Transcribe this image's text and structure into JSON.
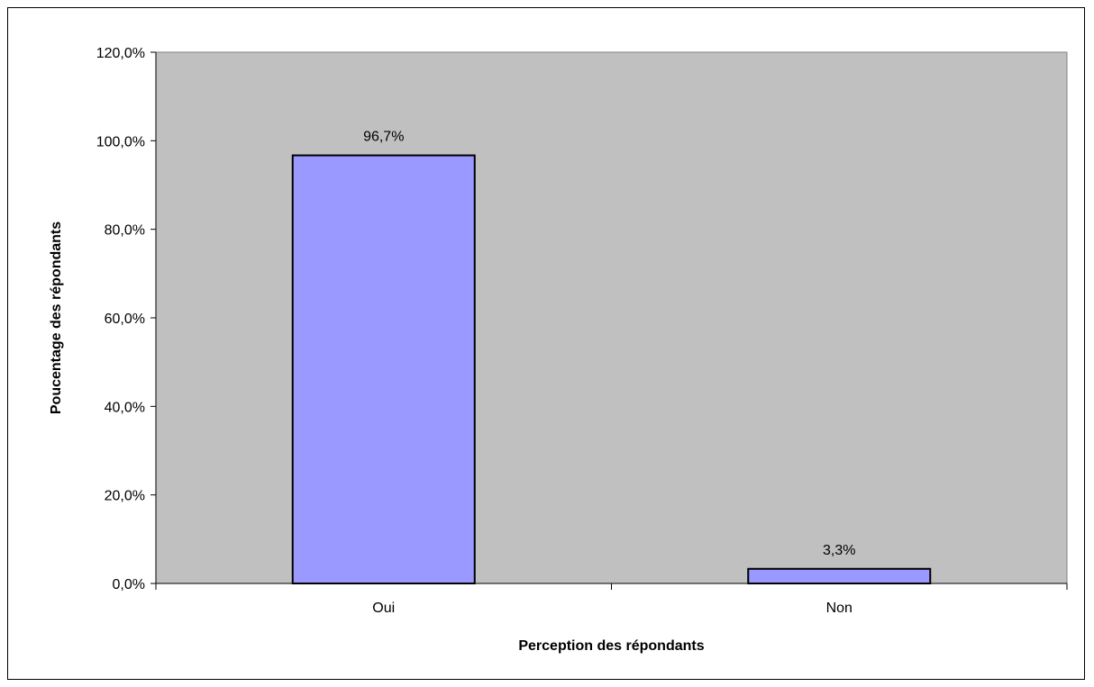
{
  "chart_data": {
    "type": "bar",
    "categories": [
      "Oui",
      "Non"
    ],
    "values": [
      96.7,
      3.3
    ],
    "value_labels": [
      "96,7%",
      "3,3%"
    ],
    "xlabel": "Perception des répondants",
    "ylabel": "Poucentage des répondants",
    "ylim": [
      0,
      120
    ],
    "yticks": [
      0,
      20,
      40,
      60,
      80,
      100,
      120
    ],
    "ytick_labels": [
      "0,0%",
      "20,0%",
      "40,0%",
      "60,0%",
      "80,0%",
      "100,0%",
      "120,0%"
    ],
    "grid": false,
    "legend": "none",
    "colors": {
      "plot_background": "#c0c0c0",
      "bar_fill": "#9999ff",
      "bar_stroke": "#000000"
    }
  }
}
